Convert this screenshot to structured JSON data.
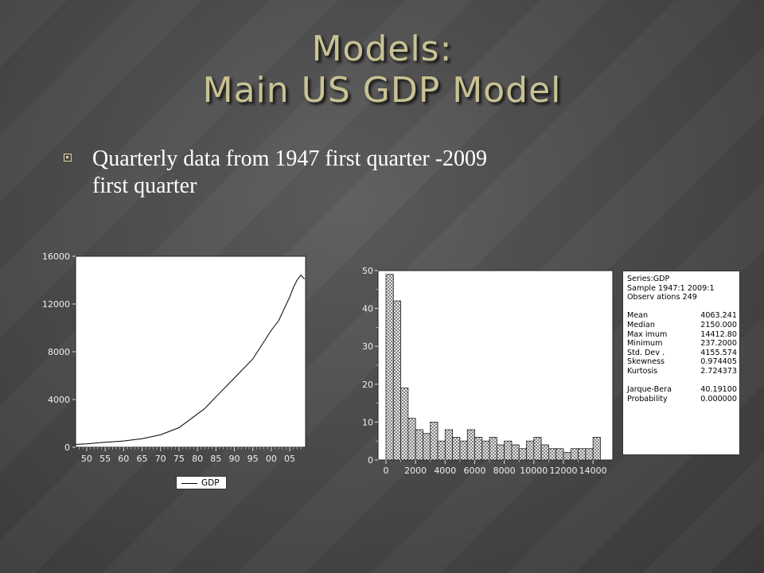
{
  "slide": {
    "title_line1": "Models:",
    "title_line2": "Main US GDP Model",
    "bullet_line1": "Quarterly data from 1947 first quarter -2009",
    "bullet_line2": "first quarter",
    "title_color": "#c9c293"
  },
  "chart_data": [
    {
      "type": "line",
      "series": [
        {
          "name": "GDP",
          "x": [
            1947,
            1950,
            1955,
            1960,
            1965,
            1970,
            1975,
            1980,
            1982,
            1985,
            1990,
            1995,
            2000,
            2002,
            2005,
            2006,
            2007,
            2008,
            2009
          ],
          "values": [
            237,
            290,
            420,
            530,
            720,
            1040,
            1640,
            2790,
            3250,
            4220,
            5800,
            7400,
            9800,
            10600,
            12600,
            13400,
            14000,
            14413,
            14100
          ]
        }
      ],
      "xticks": [
        "50",
        "55",
        "60",
        "65",
        "70",
        "75",
        "80",
        "85",
        "90",
        "95",
        "00",
        "05"
      ],
      "yticks": [
        "0",
        "4000",
        "8000",
        "12000",
        "16000"
      ],
      "ylim": [
        0,
        16000
      ],
      "legend": "bottom"
    },
    {
      "type": "bar",
      "bin_width": 500,
      "bin_starts": [
        0,
        500,
        1000,
        1500,
        2000,
        2500,
        3000,
        3500,
        4000,
        4500,
        5000,
        5500,
        6000,
        6500,
        7000,
        7500,
        8000,
        8500,
        9000,
        9500,
        10000,
        10500,
        11000,
        11500,
        12000,
        12500,
        13000,
        13500,
        14000
      ],
      "values": [
        49,
        42,
        19,
        11,
        8,
        7,
        10,
        5,
        8,
        6,
        5,
        8,
        6,
        5,
        6,
        4,
        5,
        4,
        3,
        5,
        6,
        4,
        3,
        3,
        2,
        3,
        3,
        3,
        6
      ],
      "xticks": [
        "0",
        "2000",
        "4000",
        "6000",
        "8000",
        "10000",
        "12000",
        "14000"
      ],
      "yticks": [
        "0",
        "10",
        "20",
        "30",
        "40",
        "50"
      ],
      "ylim": [
        0,
        50
      ],
      "xlim": [
        0,
        14800
      ]
    }
  ],
  "stats": [
    {
      "label": "Series:GDP",
      "value": ""
    },
    {
      "label": "Sample 1947:1 2009:1",
      "value": ""
    },
    {
      "label": "Observ ations 249",
      "value": ""
    },
    {
      "label": "",
      "value": ""
    },
    {
      "label": "Mean",
      "value": "4063.241"
    },
    {
      "label": "Median",
      "value": "2150.000"
    },
    {
      "label": "Max imum",
      "value": "14412.80"
    },
    {
      "label": "Minimum",
      "value": "237.2000"
    },
    {
      "label": "Std. Dev .",
      "value": "4155.574"
    },
    {
      "label": "Skewness",
      "value": "0.974405"
    },
    {
      "label": "Kurtosis",
      "value": "2.724373"
    },
    {
      "label": "",
      "value": ""
    },
    {
      "label": "Jarque-Bera",
      "value": "40.19100"
    },
    {
      "label": "Probability",
      "value": "0.000000"
    }
  ]
}
